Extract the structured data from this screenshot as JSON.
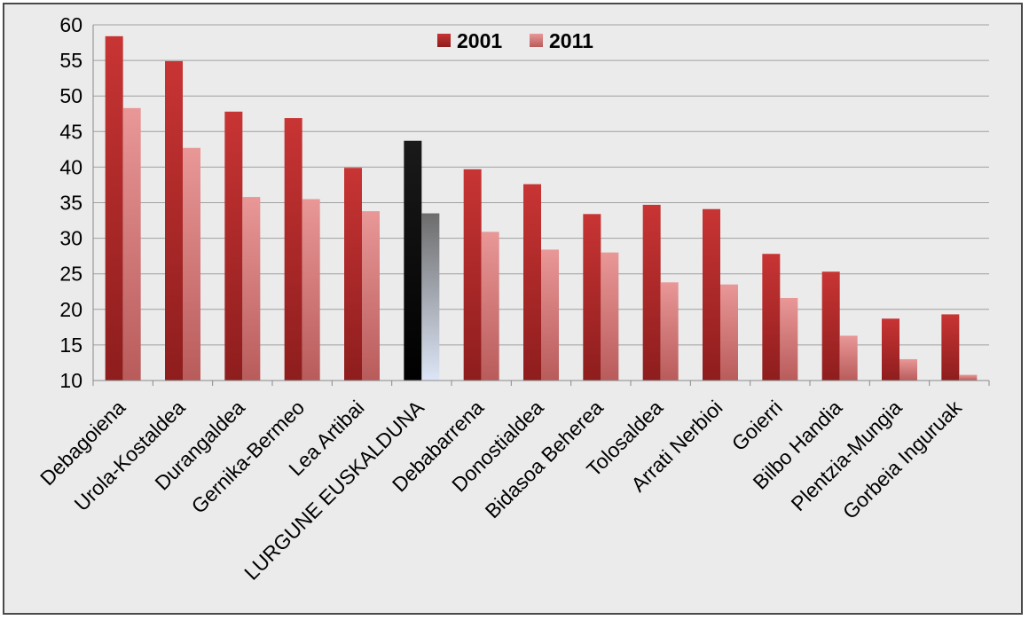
{
  "chart_data": {
    "type": "bar",
    "title": "",
    "xlabel": "",
    "ylabel": "",
    "ylim": [
      10,
      60
    ],
    "yticks": [
      10,
      15,
      20,
      25,
      30,
      35,
      40,
      45,
      50,
      55,
      60
    ],
    "grid": true,
    "legend_position": "top-center",
    "categories": [
      "Debagoiena",
      "Urola-Kostaldea",
      "Durangaldea",
      "Gernika-Bermeo",
      "Lea Artibai",
      "LURGUNE EUSKALDUNA",
      "Debabarrena",
      "Donostialdea",
      "Bidasoa Beherea",
      "Tolosaldea",
      "Arrati Nerbioi",
      "Goierri",
      "Bilbo Handia",
      "Plentzia-Mungia",
      "Gorbeia Inguruak"
    ],
    "highlight_category": "LURGUNE EUSKALDUNA",
    "series": [
      {
        "name": "2001",
        "color": "#b02a2a",
        "values": [
          58.4,
          54.9,
          47.8,
          46.9,
          39.9,
          43.7,
          39.7,
          37.6,
          33.4,
          34.7,
          34.1,
          27.8,
          25.3,
          18.7,
          19.3
        ]
      },
      {
        "name": "2011",
        "color": "#de8585",
        "values": [
          48.3,
          42.7,
          35.8,
          35.5,
          33.8,
          33.5,
          30.9,
          28.4,
          28.0,
          23.8,
          23.5,
          21.6,
          16.3,
          13.0,
          10.8
        ]
      }
    ],
    "highlight_colors": {
      "2001": "#000000",
      "2011": "#a8aec0"
    }
  }
}
